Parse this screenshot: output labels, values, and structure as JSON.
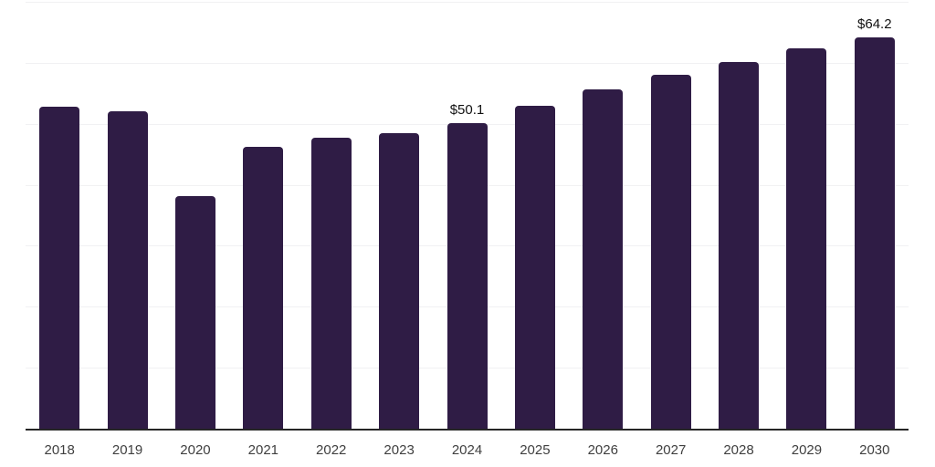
{
  "chart_data": {
    "type": "bar",
    "title": "",
    "xlabel": "",
    "ylabel": "",
    "categories": [
      "2018",
      "2019",
      "2020",
      "2021",
      "2022",
      "2023",
      "2024",
      "2025",
      "2026",
      "2027",
      "2028",
      "2029",
      "2030"
    ],
    "values": [
      52.8,
      52.0,
      38.1,
      46.2,
      47.7,
      48.4,
      50.1,
      52.9,
      55.6,
      58.0,
      60.2,
      62.4,
      64.2
    ],
    "value_labels": [
      "",
      "",
      "",
      "",
      "",
      "",
      "$50.1",
      "",
      "",
      "",
      "",
      "",
      "$64.2"
    ],
    "ylim": [
      0,
      70
    ],
    "grid_interval": 10,
    "grid": true,
    "legend": false,
    "y_axis_tick_labels_visible": false,
    "colors": {
      "bar": "#2f1c45",
      "gridline": "#f1f1f3",
      "axis_line": "#262626",
      "tick_label": "#3f3f3f",
      "value_label": "#111111",
      "background": "#ffffff"
    }
  }
}
